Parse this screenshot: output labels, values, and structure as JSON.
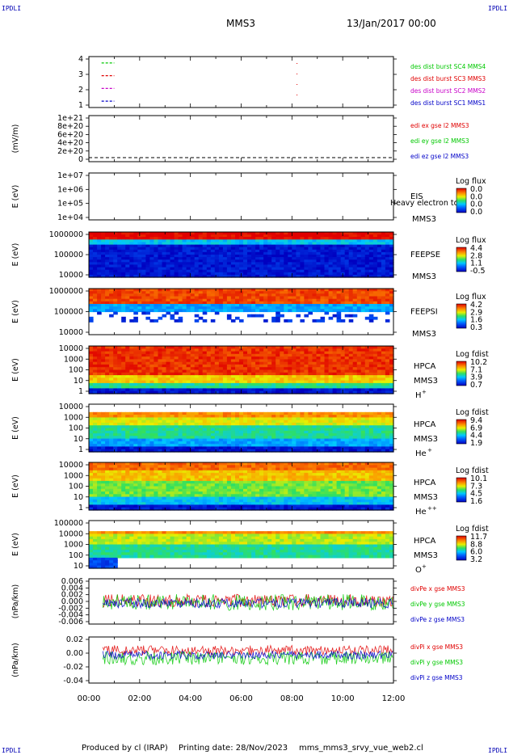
{
  "header": {
    "corner_label": "IPDLI",
    "spacecraft": "MMS3",
    "date_time": "13/Jan/2017 00:00"
  },
  "footer": {
    "produced_by": "Produced by cl (IRAP)",
    "printing_date": "Printing date: 28/Nov/2023",
    "file_name": "mms_mms3_srvy_vue_web2.cl"
  },
  "x_axis": {
    "tick_labels": [
      "00:00",
      "02:00",
      "04:00",
      "06:00",
      "08:00",
      "10:00",
      "12:00"
    ],
    "range_hours": [
      0,
      12
    ]
  },
  "colors": {
    "red": "#e00000",
    "green": "#00c800",
    "blue": "#0000c8",
    "magenta": "#c800c8"
  },
  "chart_data": [
    {
      "type": "line",
      "id": "burst",
      "ylabel": "",
      "yticks": [
        "4",
        "3",
        "2",
        "1"
      ],
      "ylim": [
        0.5,
        4.5
      ],
      "series": [
        {
          "name": "des dist burst SC1 MMS1",
          "color": "#0000c8",
          "y": 1,
          "segments": [
            [
              0.5,
              1.0
            ]
          ]
        },
        {
          "name": "des dist burst SC2 MMS2",
          "color": "#c800c8",
          "y": 2,
          "segments": [
            [
              0.5,
              1.0
            ]
          ]
        },
        {
          "name": "des dist burst SC3 MMS3",
          "color": "#e00000",
          "y": 3,
          "segments": [
            [
              0.5,
              1.0
            ]
          ]
        },
        {
          "name": "des dist burst SC4 MMS4",
          "color": "#00c800",
          "y": 4,
          "segments": [
            [
              0.5,
              1.0
            ]
          ]
        }
      ]
    },
    {
      "type": "line",
      "id": "edi",
      "ylabel": "(mV/m)",
      "yticks": [
        "1e+21",
        "8e+20",
        "6e+20",
        "4e+20",
        "2e+20",
        "0"
      ],
      "ylim": [
        0,
        1e+21
      ],
      "series": [
        {
          "name": "edi ex gse l2 MMS3",
          "color": "#e00000"
        },
        {
          "name": "edi ey gse l2 MMS3",
          "color": "#00c800"
        },
        {
          "name": "edi ez gse l2 MMS3",
          "color": "#0000c8"
        }
      ]
    },
    {
      "type": "heatmap",
      "id": "eis",
      "ylabel": "E (eV)",
      "yticks": [
        "1e+07",
        "1e+06",
        "1e+05",
        "1e+04"
      ],
      "side_labels": [
        "EIS",
        "MMS3"
      ],
      "overlay_text": "Heavy electron to",
      "colorbar": {
        "title": "Log flux",
        "ticks": [
          "0.0",
          "0.0",
          "0.0",
          "0.0"
        ]
      }
    },
    {
      "type": "heatmap",
      "id": "feepse",
      "ylabel": "E (eV)",
      "yticks": [
        "1000000",
        "100000",
        "10000"
      ],
      "side_labels": [
        "FEEPSE",
        "MMS3"
      ],
      "colorbar": {
        "title": "Log flux",
        "ticks": [
          "4.4",
          "2.8",
          "1.1",
          "-0.5"
        ]
      }
    },
    {
      "type": "heatmap",
      "id": "feepsi",
      "ylabel": "E (eV)",
      "yticks": [
        "1000000",
        "100000",
        "10000"
      ],
      "side_labels": [
        "FEEPSI",
        "MMS3"
      ],
      "colorbar": {
        "title": "Log flux",
        "ticks": [
          "4.2",
          "2.9",
          "1.6",
          "0.3"
        ]
      }
    },
    {
      "type": "heatmap",
      "id": "hpca-h",
      "ylabel": "E (eV)",
      "yticks": [
        "10000",
        "1000",
        "100",
        "10",
        "1"
      ],
      "side_labels": [
        "HPCA",
        "MMS3",
        "H+"
      ],
      "colorbar": {
        "title": "Log fdist",
        "ticks": [
          "10.2",
          "7.1",
          "3.9",
          "0.7"
        ]
      }
    },
    {
      "type": "heatmap",
      "id": "hpca-he",
      "ylabel": "E (eV)",
      "yticks": [
        "10000",
        "1000",
        "100",
        "10",
        "1"
      ],
      "side_labels": [
        "HPCA",
        "MMS3",
        "He+"
      ],
      "colorbar": {
        "title": "Log fdist",
        "ticks": [
          "9.4",
          "6.9",
          "4.4",
          "1.9"
        ]
      }
    },
    {
      "type": "heatmap",
      "id": "hpca-hepp",
      "ylabel": "E (eV)",
      "yticks": [
        "10000",
        "1000",
        "100",
        "10",
        "1"
      ],
      "side_labels": [
        "HPCA",
        "MMS3",
        "He++"
      ],
      "colorbar": {
        "title": "Log fdist",
        "ticks": [
          "10.1",
          "7.3",
          "4.5",
          "1.6"
        ]
      }
    },
    {
      "type": "heatmap",
      "id": "hpca-o",
      "ylabel": "E (eV)",
      "yticks": [
        "100000",
        "10000",
        "1000",
        "100",
        "10"
      ],
      "side_labels": [
        "HPCA",
        "MMS3",
        "O+"
      ],
      "colorbar": {
        "title": "Log fdist",
        "ticks": [
          "11.7",
          "8.8",
          "6.0",
          "3.2"
        ]
      }
    },
    {
      "type": "line",
      "id": "divpe",
      "ylabel": "(nPa/km)",
      "yticks": [
        "0.006",
        "0.004",
        "0.002",
        "0.000",
        "-0.002",
        "-0.004",
        "-0.006"
      ],
      "ylim": [
        -0.007,
        0.007
      ],
      "series": [
        {
          "name": "divPe x gse MMS3",
          "color": "#e00000"
        },
        {
          "name": "divPe y gse MMS3",
          "color": "#00c800"
        },
        {
          "name": "divPe z gse MMS3",
          "color": "#0000c8"
        }
      ]
    },
    {
      "type": "line",
      "id": "divpi",
      "ylabel": "(nPa/km)",
      "yticks": [
        "0.02",
        "0.00",
        "-0.02",
        "-0.04"
      ],
      "ylim": [
        -0.05,
        0.03
      ],
      "series": [
        {
          "name": "divPi x gse MMS3",
          "color": "#e00000"
        },
        {
          "name": "divPi y gse MMS3",
          "color": "#00c800"
        },
        {
          "name": "divPi z gse MMS3",
          "color": "#0000c8"
        }
      ]
    }
  ]
}
